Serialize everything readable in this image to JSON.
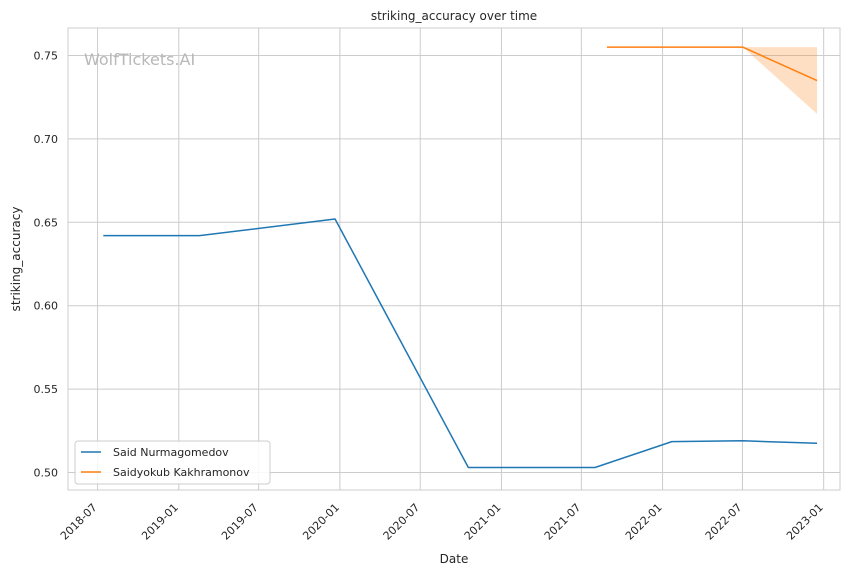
{
  "chart_data": {
    "type": "line",
    "title": "striking_accuracy over time",
    "xlabel": "Date",
    "ylabel": "striking_accuracy",
    "watermark": "WolfTickets.AI",
    "xlim": [
      "2018-04-25",
      "2023-02-07"
    ],
    "ylim": [
      0.4895,
      0.7665
    ],
    "xticks": [
      "2018-07",
      "2019-01",
      "2019-07",
      "2020-01",
      "2020-07",
      "2021-01",
      "2021-07",
      "2022-01",
      "2022-07",
      "2023-01"
    ],
    "yticks": [
      "0.50",
      "0.55",
      "0.60",
      "0.65",
      "0.70",
      "0.75"
    ],
    "grid": true,
    "legend_position": "lower-left",
    "series": [
      {
        "name": "Said Nurmagomedov",
        "color": "#1f77b4",
        "points": [
          {
            "x": "2018-07-14",
            "y": 0.642
          },
          {
            "x": "2019-02-17",
            "y": 0.642
          },
          {
            "x": "2019-12-21",
            "y": 0.652
          },
          {
            "x": "2020-10-18",
            "y": 0.503
          },
          {
            "x": "2021-08-01",
            "y": 0.503
          },
          {
            "x": "2022-01-22",
            "y": 0.5185
          },
          {
            "x": "2022-07-02",
            "y": 0.519
          },
          {
            "x": "2022-12-17",
            "y": 0.5175
          }
        ]
      },
      {
        "name": "Saidyokub Kakhramonov",
        "color": "#ff7f0e",
        "points": [
          {
            "x": "2021-08-28",
            "y": 0.755
          },
          {
            "x": "2022-07-02",
            "y": 0.755
          },
          {
            "x": "2022-12-17",
            "y": 0.735
          }
        ],
        "band": [
          {
            "x": "2022-07-02",
            "low": 0.755,
            "high": 0.755
          },
          {
            "x": "2022-12-17",
            "low": 0.715,
            "high": 0.755
          }
        ]
      }
    ]
  }
}
